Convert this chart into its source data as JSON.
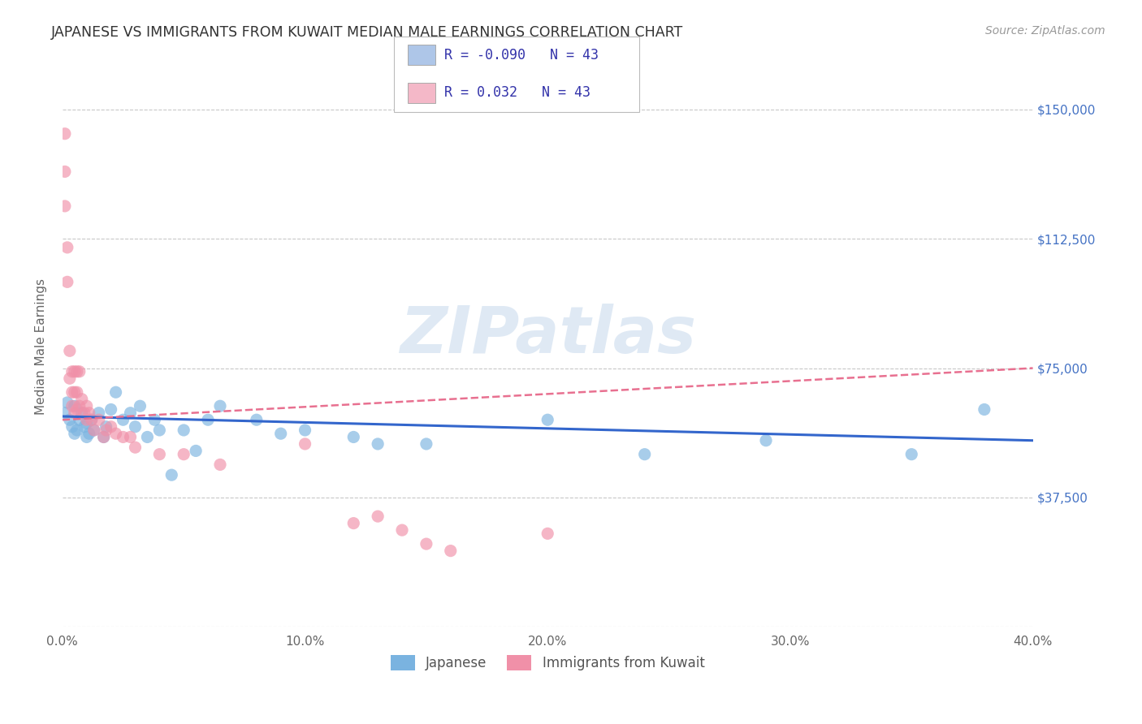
{
  "title": "JAPANESE VS IMMIGRANTS FROM KUWAIT MEDIAN MALE EARNINGS CORRELATION CHART",
  "source": "Source: ZipAtlas.com",
  "ylabel": "Median Male Earnings",
  "xlim": [
    0.0,
    0.4
  ],
  "ylim": [
    0,
    162500
  ],
  "yticks": [
    0,
    37500,
    75000,
    112500,
    150000
  ],
  "ytick_labels": [
    "",
    "$37,500",
    "$75,000",
    "$112,500",
    "$150,000"
  ],
  "xtick_labels": [
    "0.0%",
    "10.0%",
    "20.0%",
    "30.0%",
    "40.0%"
  ],
  "xticks": [
    0.0,
    0.1,
    0.2,
    0.3,
    0.4
  ],
  "legend_entries": [
    {
      "label": "Japanese",
      "color": "#aec6e8",
      "R": "-0.090",
      "N": "43"
    },
    {
      "label": "Immigrants from Kuwait",
      "color": "#f4b8c8",
      "R": "0.032",
      "N": "43"
    }
  ],
  "watermark": "ZIPatlas",
  "japanese_scatter_x": [
    0.001,
    0.002,
    0.003,
    0.004,
    0.005,
    0.005,
    0.006,
    0.007,
    0.008,
    0.009,
    0.01,
    0.01,
    0.011,
    0.012,
    0.013,
    0.015,
    0.017,
    0.018,
    0.02,
    0.022,
    0.025,
    0.028,
    0.03,
    0.032,
    0.035,
    0.038,
    0.04,
    0.045,
    0.05,
    0.055,
    0.06,
    0.065,
    0.08,
    0.09,
    0.1,
    0.12,
    0.13,
    0.15,
    0.2,
    0.24,
    0.29,
    0.35,
    0.38
  ],
  "japanese_scatter_y": [
    62000,
    65000,
    60000,
    58000,
    56000,
    64000,
    57000,
    60000,
    62000,
    58000,
    55000,
    59000,
    56000,
    60000,
    57000,
    62000,
    55000,
    58000,
    63000,
    68000,
    60000,
    62000,
    58000,
    64000,
    55000,
    60000,
    57000,
    44000,
    57000,
    51000,
    60000,
    64000,
    60000,
    56000,
    57000,
    55000,
    53000,
    53000,
    60000,
    50000,
    54000,
    50000,
    63000
  ],
  "kuwait_scatter_x": [
    0.001,
    0.001,
    0.001,
    0.002,
    0.002,
    0.003,
    0.003,
    0.004,
    0.004,
    0.004,
    0.005,
    0.005,
    0.005,
    0.006,
    0.006,
    0.006,
    0.007,
    0.007,
    0.008,
    0.009,
    0.01,
    0.01,
    0.011,
    0.012,
    0.013,
    0.015,
    0.017,
    0.018,
    0.02,
    0.022,
    0.025,
    0.028,
    0.03,
    0.04,
    0.05,
    0.065,
    0.1,
    0.12,
    0.13,
    0.14,
    0.15,
    0.16,
    0.2
  ],
  "kuwait_scatter_y": [
    143000,
    132000,
    122000,
    110000,
    100000,
    80000,
    72000,
    74000,
    68000,
    64000,
    74000,
    68000,
    62000,
    74000,
    68000,
    63000,
    74000,
    64000,
    66000,
    62000,
    64000,
    60000,
    62000,
    60000,
    57000,
    60000,
    55000,
    57000,
    58000,
    56000,
    55000,
    55000,
    52000,
    50000,
    50000,
    47000,
    53000,
    30000,
    32000,
    28000,
    24000,
    22000,
    27000
  ],
  "japanese_line_x": [
    0.0,
    0.4
  ],
  "japanese_line_y": [
    61000,
    54000
  ],
  "kuwait_line_x": [
    0.0,
    0.4
  ],
  "kuwait_line_y": [
    60000,
    75000
  ],
  "bg_color": "#ffffff",
  "grid_color": "#c8c8c8",
  "japanese_color": "#7ab3e0",
  "kuwait_color": "#f090a8",
  "japanese_line_color": "#3366cc",
  "kuwait_line_color": "#e87090",
  "ytick_right_color": "#4472c4"
}
